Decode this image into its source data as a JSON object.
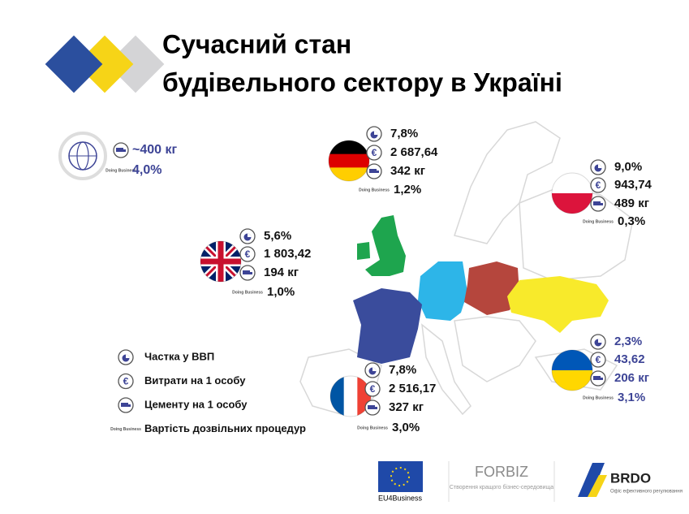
{
  "header": {
    "title_lines": [
      "Сучасний стан",
      "будівельного сектору в Україні"
    ]
  },
  "icons": {
    "euro": "€",
    "doing_business": "Doing Business"
  },
  "world": {
    "values": [
      "~400 кг",
      "4,0%"
    ]
  },
  "countries": [
    {
      "name": "germany",
      "values": [
        "7,8%",
        "2 687,64",
        "342 кг",
        "1,2%"
      ]
    },
    {
      "name": "poland",
      "values": [
        "9,0%",
        "943,74",
        "489 кг",
        "0,3%"
      ]
    },
    {
      "name": "uk",
      "values": [
        "5,6%",
        "1 803,42",
        "194 кг",
        "1,0%"
      ]
    },
    {
      "name": "france",
      "values": [
        "7,8%",
        "2 516,17",
        "327 кг",
        "3,0%"
      ]
    },
    {
      "name": "ukraine",
      "values": [
        "2,3%",
        "43,62",
        "206 кг",
        "3,1%"
      ]
    }
  ],
  "legend": [
    "Частка у ВВП",
    "Витрати на 1 особу",
    "Цементу на 1 особу",
    "Вартість дозвільних процедур"
  ],
  "footer": {
    "eu": "EU4Business",
    "forbiz": "FORBIZ",
    "forbiz_sub": "Створення кращого бізнес-середовища",
    "brdo": "BRDO",
    "brdo_sub": "Офіс ефективного регулювання"
  }
}
